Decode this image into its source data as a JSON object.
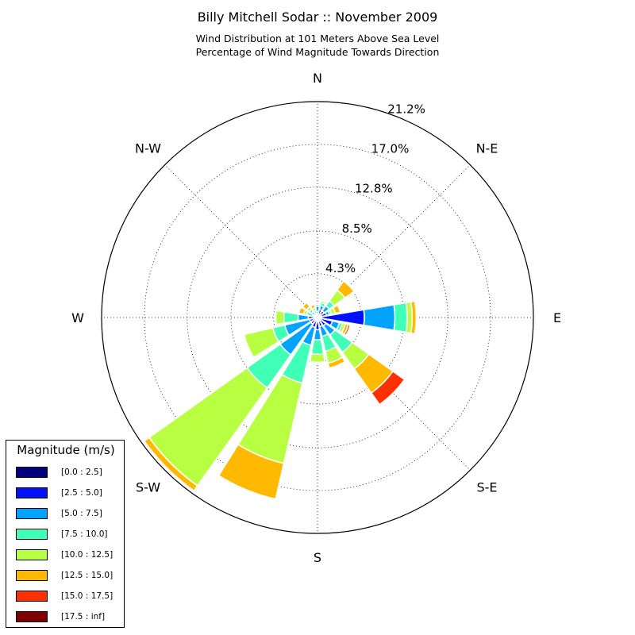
{
  "title": "Billy Mitchell Sodar :: November 2009",
  "subtitle_line1": "Wind Distribution at 101 Meters Above Sea Level",
  "subtitle_line2": "Percentage of Wind Magnitude Towards Direction",
  "chart_data": {
    "type": "windrose",
    "direction_labels": [
      "N",
      "N-E",
      "E",
      "S-E",
      "S",
      "S-W",
      "W",
      "N-W"
    ],
    "radial_ticks": [
      "4.3%",
      "8.5%",
      "12.8%",
      "17.0%",
      "21.2%"
    ],
    "radial_max_percent": 21.2,
    "legend_title": "Magnitude (m/s)",
    "bins": [
      {
        "label": "[0.0 : 2.5]",
        "color": "#000080"
      },
      {
        "label": "[2.5 : 5.0]",
        "color": "#0010ff"
      },
      {
        "label": "[5.0 : 7.5]",
        "color": "#00a4ff"
      },
      {
        "label": "[7.5 : 10.0]",
        "color": "#40ffb7"
      },
      {
        "label": "[10.0 : 12.5]",
        "color": "#b7ff40"
      },
      {
        "label": "[12.5 : 15.0]",
        "color": "#ffb900"
      },
      {
        "label": "[15.0 : 17.5]",
        "color": "#ff3000"
      },
      {
        "label": "[17.5 : inf]",
        "color": "#800000"
      }
    ],
    "directions_deg": [
      0,
      22.5,
      45,
      67.5,
      90,
      112.5,
      135,
      157.5,
      180,
      202.5,
      225,
      247.5,
      270,
      292.5,
      315,
      337.5
    ],
    "cumulative_percent": [
      [
        0.1,
        0.6,
        1.1,
        1.3,
        1.4,
        1.5,
        1.5,
        1.5
      ],
      [
        0.2,
        0.8,
        1.2,
        1.5,
        1.7,
        1.8,
        1.8,
        1.8
      ],
      [
        0.2,
        0.8,
        1.4,
        2.0,
        3.3,
        4.4,
        4.5,
        4.5
      ],
      [
        0.2,
        0.9,
        1.2,
        1.4,
        1.8,
        2.3,
        2.4,
        2.4
      ],
      [
        0.2,
        4.6,
        7.6,
        8.8,
        9.3,
        9.7,
        9.7,
        9.7
      ],
      [
        0.2,
        1.5,
        2.2,
        2.5,
        2.8,
        3.1,
        3.3,
        3.3
      ],
      [
        0.2,
        1.0,
        2.1,
        4.2,
        6.2,
        9.1,
        10.5,
        10.5
      ],
      [
        0.2,
        0.9,
        1.9,
        3.4,
        4.6,
        5.1,
        5.2,
        5.2
      ],
      [
        0.2,
        1.2,
        2.2,
        3.6,
        4.4,
        4.4,
        4.4,
        4.4
      ],
      [
        0.2,
        1.0,
        2.8,
        6.6,
        14.7,
        18.3,
        18.3,
        18.3
      ],
      [
        0.2,
        0.8,
        4.5,
        8.5,
        20.3,
        20.9,
        20.9,
        20.9
      ],
      [
        0.2,
        0.8,
        3.3,
        4.5,
        7.4,
        7.4,
        7.4,
        7.4
      ],
      [
        0.2,
        0.9,
        1.9,
        3.3,
        4.1,
        4.2,
        4.2,
        4.2
      ],
      [
        0.2,
        0.4,
        0.5,
        1.1,
        1.4,
        1.9,
        1.9,
        1.9
      ],
      [
        0.1,
        0.3,
        0.7,
        1.0,
        1.3,
        1.8,
        1.8,
        1.8
      ],
      [
        0.1,
        0.2,
        0.3,
        0.7,
        1.0,
        1.3,
        1.3,
        1.3
      ]
    ]
  }
}
